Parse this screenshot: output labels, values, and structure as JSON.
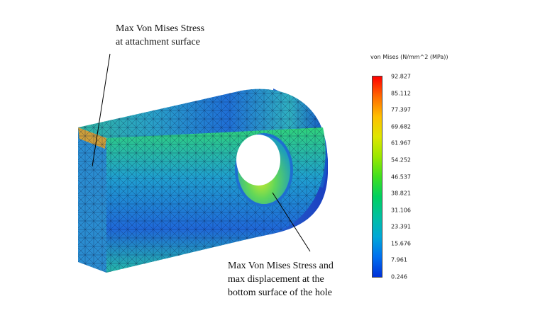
{
  "annotations": {
    "top": {
      "line1": "Max Von Mises Stress",
      "line2": "at attachment surface"
    },
    "bottom": {
      "line1": "Max Von Mises Stress and",
      "line2": "max displacement at the",
      "line3": "bottom surface of the hole"
    }
  },
  "legend": {
    "title": "von Mises (N/mm^2 (MPa))",
    "ticks": [
      "92.827",
      "85.112",
      "77.397",
      "69.682",
      "61.967",
      "54.252",
      "46.537",
      "38.821",
      "31.106",
      "23.391",
      "15.676",
      "7.961",
      "0.246"
    ],
    "colors": [
      "#ff0000",
      "#ff6a00",
      "#ffbf00",
      "#dfe600",
      "#9be800",
      "#40e020",
      "#00d060",
      "#00c0a0",
      "#00a8d8",
      "#0070f0",
      "#0030d8"
    ]
  },
  "model": {
    "face_colors": {
      "front": "#2a7fd0",
      "top": "#35a0c0",
      "side": "#2e86cf",
      "hole_inner": "#3fcf6a",
      "hole_hot": "#b7e83a"
    }
  }
}
